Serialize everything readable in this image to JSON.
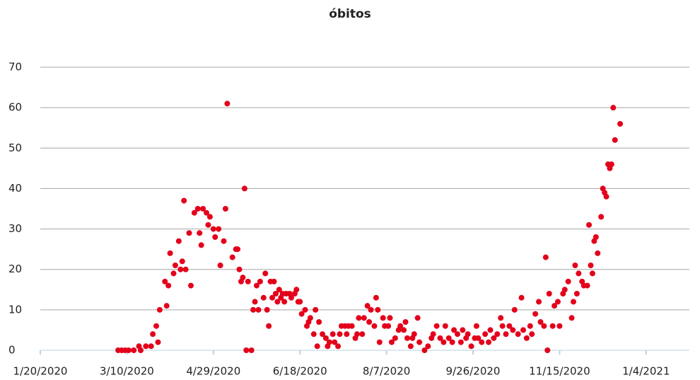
{
  "chart_data": {
    "type": "scatter",
    "title": "óbitos",
    "color": "#e3001b",
    "grid": true,
    "xlim": [
      "1/20/2020",
      "1/29/2021"
    ],
    "xticks": [
      "1/20/2020",
      "3/10/2020",
      "4/29/2020",
      "6/18/2020",
      "8/7/2020",
      "9/26/2020",
      "11/15/2020",
      "1/4/2021"
    ],
    "ylim": [
      0,
      70
    ],
    "yticks": [
      0,
      10,
      20,
      30,
      40,
      50,
      60,
      70
    ],
    "x": [
      "3/5/2020",
      "3/7/2020",
      "3/9/2020",
      "3/11/2020",
      "3/14/2020",
      "3/17/2020",
      "3/18/2020",
      "3/21/2020",
      "3/24/2020",
      "3/25/2020",
      "3/27/2020",
      "3/28/2020",
      "3/29/2020",
      "4/1/2020",
      "4/2/2020",
      "4/3/2020",
      "4/4/2020",
      "4/6/2020",
      "4/7/2020",
      "4/9/2020",
      "4/10/2020",
      "4/11/2020",
      "4/12/2020",
      "4/13/2020",
      "4/15/2020",
      "4/16/2020",
      "4/18/2020",
      "4/20/2020",
      "4/21/2020",
      "4/22/2020",
      "4/23/2020",
      "4/25/2020",
      "4/26/2020",
      "4/27/2020",
      "4/29/2020",
      "4/30/2020",
      "5/2/2020",
      "5/3/2020",
      "5/5/2020",
      "5/6/2020",
      "5/7/2020",
      "5/10/2020",
      "5/12/2020",
      "5/13/2020",
      "5/14/2020",
      "5/15/2020",
      "5/16/2020",
      "5/17/2020",
      "5/18/2020",
      "5/19/2020",
      "5/21/2020",
      "5/22/2020",
      "5/23/2020",
      "5/24/2020",
      "5/25/2020",
      "5/26/2020",
      "5/28/2020",
      "5/29/2020",
      "5/30/2020",
      "5/31/2020",
      "6/1/2020",
      "6/2/2020",
      "6/3/2020",
      "6/4/2020",
      "6/5/2020",
      "6/6/2020",
      "6/7/2020",
      "6/8/2020",
      "6/9/2020",
      "6/10/2020",
      "6/12/2020",
      "6/13/2020",
      "6/15/2020",
      "6/16/2020",
      "6/17/2020",
      "6/18/2020",
      "6/19/2020",
      "6/21/2020",
      "6/22/2020",
      "6/23/2020",
      "6/24/2020",
      "6/26/2020",
      "6/27/2020",
      "6/28/2020",
      "6/29/2020",
      "7/1/2020",
      "7/3/2020",
      "7/4/2020",
      "7/5/2020",
      "7/7/2020",
      "7/8/2020",
      "7/10/2020",
      "7/11/2020",
      "7/12/2020",
      "7/14/2020",
      "7/15/2020",
      "7/16/2020",
      "7/18/2020",
      "7/20/2020",
      "7/21/2020",
      "7/22/2020",
      "7/24/2020",
      "7/25/2020",
      "7/27/2020",
      "7/28/2020",
      "7/29/2020",
      "7/31/2020",
      "8/1/2020",
      "8/2/2020",
      "8/3/2020",
      "8/5/2020",
      "8/6/2020",
      "8/8/2020",
      "8/9/2020",
      "8/10/2020",
      "8/12/2020",
      "8/14/2020",
      "8/15/2020",
      "8/17/2020",
      "8/18/2020",
      "8/19/2020",
      "8/21/2020",
      "8/22/2020",
      "8/23/2020",
      "8/25/2020",
      "8/26/2020",
      "8/29/2020",
      "8/31/2020",
      "9/2/2020",
      "9/3/2020",
      "9/5/2020",
      "9/7/2020",
      "9/9/2020",
      "9/10/2020",
      "9/12/2020",
      "9/14/2020",
      "9/15/2020",
      "9/17/2020",
      "9/19/2020",
      "9/20/2020",
      "9/22/2020",
      "9/23/2020",
      "9/25/2020",
      "9/27/2020",
      "9/28/2020",
      "9/29/2020",
      "10/1/2020",
      "10/3/2020",
      "10/5/2020",
      "10/6/2020",
      "10/8/2020",
      "10/10/2020",
      "10/12/2020",
      "10/13/2020",
      "10/15/2020",
      "10/17/2020",
      "10/19/2020",
      "10/20/2020",
      "10/22/2020",
      "10/24/2020",
      "10/25/2020",
      "10/27/2020",
      "10/29/2020",
      "10/30/2020",
      "11/1/2020",
      "11/3/2020",
      "11/4/2020",
      "11/6/2020",
      "11/7/2020",
      "11/8/2020",
      "11/9/2020",
      "11/11/2020",
      "11/12/2020",
      "11/14/2020",
      "11/15/2020",
      "11/17/2020",
      "11/18/2020",
      "11/20/2020",
      "11/22/2020",
      "11/23/2020",
      "11/24/2020",
      "11/25/2020",
      "11/26/2020",
      "11/28/2020",
      "11/29/2020",
      "12/1/2020",
      "12/2/2020",
      "12/3/2020",
      "12/4/2020",
      "12/5/2020",
      "12/6/2020",
      "12/7/2020",
      "12/9/2020",
      "12/10/2020",
      "12/11/2020",
      "12/12/2020",
      "12/13/2020",
      "12/14/2020",
      "12/15/2020",
      "12/16/2020",
      "12/17/2020",
      "12/20/2020"
    ],
    "values": [
      0,
      0,
      0,
      0,
      0,
      1,
      0,
      1,
      1,
      4,
      6,
      2,
      10,
      17,
      11,
      16,
      24,
      19,
      21,
      27,
      20,
      22,
      37,
      20,
      29,
      16,
      34,
      35,
      29,
      26,
      35,
      34,
      31,
      33,
      30,
      28,
      30,
      21,
      27,
      35,
      61,
      23,
      25,
      25,
      20,
      17,
      18,
      40,
      0,
      17,
      0,
      10,
      12,
      16,
      10,
      17,
      13,
      19,
      10,
      6,
      17,
      13,
      17,
      14,
      12,
      15,
      13,
      14,
      12,
      14,
      14,
      13,
      14,
      15,
      12,
      12,
      9,
      10,
      6,
      7,
      8,
      4,
      10,
      1,
      7,
      4,
      3,
      1,
      2,
      4,
      2,
      1,
      4,
      6,
      6,
      4,
      6,
      6,
      3,
      4,
      8,
      4,
      8,
      11,
      7,
      10,
      6,
      13,
      10,
      2,
      8,
      6,
      6,
      8,
      2,
      3,
      5,
      6,
      5,
      7,
      3,
      1,
      3,
      4,
      8,
      2,
      0,
      1,
      3,
      4,
      6,
      3,
      2,
      6,
      3,
      2,
      5,
      4,
      2,
      5,
      3,
      4,
      1,
      3,
      6,
      3,
      2,
      4,
      2,
      5,
      3,
      4,
      8,
      6,
      4,
      6,
      5,
      10,
      4,
      13,
      5,
      3,
      6,
      4,
      9,
      12,
      7,
      6,
      23,
      0,
      14,
      6,
      11,
      12,
      6,
      14,
      15,
      17,
      8,
      12,
      21,
      14,
      19,
      17,
      16,
      16,
      31,
      21,
      19,
      27,
      28,
      24,
      33,
      40,
      39,
      38,
      46,
      45,
      46,
      60,
      52,
      56
    ]
  }
}
